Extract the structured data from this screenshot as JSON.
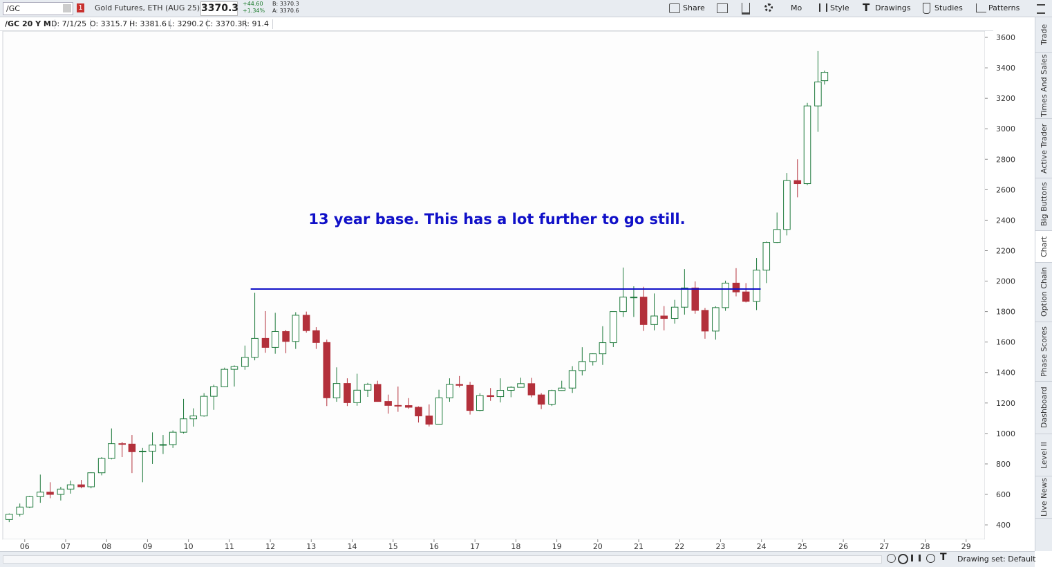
{
  "toolbar": {
    "symbol": "/GC",
    "link_badge": "1",
    "description": "Gold Futures, ETH (AUG 25)",
    "last": "3370.3",
    "change": "+44.60",
    "change_pct": "+1.34%",
    "bid": "B: 3370.3",
    "ask": "A: 3370.6",
    "buttons": [
      "Share",
      "Mo",
      "Style",
      "Drawings",
      "Studies",
      "Patterns"
    ]
  },
  "infobar": [
    "/GC 20 Y M",
    "D: 7/1/25",
    "O: 3315.7",
    "H: 3381.6",
    "L: 3290.2",
    "C: 3370.3",
    "R: 91.4"
  ],
  "sidebar_tabs": [
    "Trade",
    "Times And Sales",
    "Active Trader",
    "Big Buttons",
    "Chart",
    "Option Chain",
    "Phase Scores",
    "Dashboard",
    "Level II",
    "Live News"
  ],
  "footer": {
    "drawing_set": "Drawing set: Default"
  },
  "chart_data": {
    "type": "candlestick",
    "annotation_text": "13 year base. This has a lot further to go still.",
    "annotation_line": {
      "level": 1948,
      "x_start": 2011.52,
      "x_end": 2023.98,
      "color": "#1010c8"
    },
    "up_color": "#1e7a3c",
    "down_color": "#b3303b",
    "xlim": [
      2005.48,
      2029.46
    ],
    "ylim": [
      305,
      3641
    ],
    "yticks": [
      400,
      600,
      800,
      1000,
      1200,
      1400,
      1600,
      1800,
      2000,
      2200,
      2400,
      2600,
      2800,
      3000,
      3200,
      3400,
      3600
    ],
    "xticks": [
      {
        "value": 2006,
        "label": "06"
      },
      {
        "value": 2007,
        "label": "07"
      },
      {
        "value": 2008,
        "label": "08"
      },
      {
        "value": 2009,
        "label": "09"
      },
      {
        "value": 2010,
        "label": "10"
      },
      {
        "value": 2011,
        "label": "11"
      },
      {
        "value": 2012,
        "label": "12"
      },
      {
        "value": 2013,
        "label": "13"
      },
      {
        "value": 2014,
        "label": "14"
      },
      {
        "value": 2015,
        "label": "15"
      },
      {
        "value": 2016,
        "label": "16"
      },
      {
        "value": 2017,
        "label": "17"
      },
      {
        "value": 2018,
        "label": "18"
      },
      {
        "value": 2019,
        "label": "19"
      },
      {
        "value": 2020,
        "label": "20"
      },
      {
        "value": 2021,
        "label": "21"
      },
      {
        "value": 2022,
        "label": "22"
      },
      {
        "value": 2023,
        "label": "23"
      },
      {
        "value": 2024,
        "label": "24"
      },
      {
        "value": 2025,
        "label": "25"
      },
      {
        "value": 2026,
        "label": "26"
      },
      {
        "value": 2027,
        "label": "27"
      },
      {
        "value": 2028,
        "label": "28"
      },
      {
        "value": 2029,
        "label": "29"
      }
    ],
    "x": [
      2005.62,
      2005.88,
      2006.12,
      2006.38,
      2006.62,
      2006.88,
      2007.12,
      2007.38,
      2007.62,
      2007.88,
      2008.12,
      2008.38,
      2008.62,
      2008.88,
      2009.12,
      2009.38,
      2009.62,
      2009.88,
      2010.12,
      2010.38,
      2010.62,
      2010.88,
      2011.12,
      2011.38,
      2011.62,
      2011.88,
      2012.12,
      2012.38,
      2012.62,
      2012.88,
      2013.12,
      2013.38,
      2013.62,
      2013.88,
      2014.12,
      2014.38,
      2014.62,
      2014.88,
      2015.12,
      2015.38,
      2015.62,
      2015.88,
      2016.12,
      2016.38,
      2016.62,
      2016.88,
      2017.12,
      2017.38,
      2017.62,
      2017.88,
      2018.12,
      2018.38,
      2018.62,
      2018.88,
      2019.12,
      2019.38,
      2019.62,
      2019.88,
      2020.12,
      2020.38,
      2020.62,
      2020.88,
      2021.12,
      2021.38,
      2021.62,
      2021.88,
      2022.12,
      2022.38,
      2022.62,
      2022.88,
      2023.12,
      2023.38,
      2023.62,
      2023.88,
      2024.12,
      2024.38,
      2024.62,
      2024.88,
      2025.12,
      2025.38,
      2025.54
    ],
    "open": [
      435,
      470,
      517,
      585,
      615,
      600,
      635,
      663,
      650,
      742,
      836,
      933,
      930,
      880,
      884,
      924,
      927,
      1008,
      1096,
      1115,
      1244,
      1307,
      1421,
      1439,
      1500,
      1624,
      1565,
      1669,
      1604,
      1776,
      1675,
      1597,
      1234,
      1328,
      1202,
      1284,
      1322,
      1210,
      1184,
      1183,
      1172,
      1115,
      1061,
      1234,
      1322,
      1316,
      1151,
      1249,
      1242,
      1283,
      1303,
      1327,
      1253,
      1192,
      1282,
      1298,
      1413,
      1472,
      1523,
      1596,
      1800,
      1895,
      1895,
      1715,
      1771,
      1755,
      1829,
      1955,
      1808,
      1672,
      1826,
      1987,
      1929,
      1867,
      2072,
      2254,
      2339,
      2660,
      2640,
      3150,
      3315.7
    ],
    "high": [
      475,
      540,
      590,
      730,
      680,
      650,
      690,
      695,
      745,
      845,
      1033,
      945,
      990,
      905,
      1007,
      990,
      1020,
      1227,
      1165,
      1265,
      1320,
      1432,
      1447,
      1577,
      1923,
      1803,
      1792,
      1680,
      1796,
      1800,
      1698,
      1616,
      1434,
      1362,
      1392,
      1332,
      1346,
      1255,
      1308,
      1232,
      1178,
      1191,
      1287,
      1362,
      1377,
      1339,
      1264,
      1298,
      1362,
      1310,
      1366,
      1365,
      1265,
      1287,
      1346,
      1442,
      1566,
      1526,
      1704,
      1800,
      2089,
      1966,
      1963,
      1919,
      1836,
      1877,
      2079,
      1998,
      1824,
      1835,
      2003,
      2085,
      1987,
      2152,
      2260,
      2450,
      2710,
      2800,
      3170,
      3510,
      3381.6
    ],
    "low": [
      418,
      455,
      510,
      545,
      575,
      560,
      605,
      640,
      640,
      725,
      830,
      845,
      740,
      680,
      800,
      865,
      905,
      1000,
      1045,
      1110,
      1155,
      1305,
      1308,
      1418,
      1480,
      1530,
      1523,
      1527,
      1555,
      1662,
      1555,
      1180,
      1208,
      1180,
      1182,
      1240,
      1208,
      1130,
      1142,
      1162,
      1072,
      1046,
      1060,
      1208,
      1302,
      1124,
      1146,
      1214,
      1204,
      1238,
      1302,
      1237,
      1160,
      1180,
      1280,
      1266,
      1381,
      1446,
      1450,
      1567,
      1765,
      1765,
      1673,
      1677,
      1677,
      1721,
      1780,
      1786,
      1622,
      1616,
      1805,
      1900,
      1860,
      1810,
      1987,
      2250,
      2300,
      2550,
      2630,
      2980,
      3290.2
    ],
    "close": [
      470,
      517,
      585,
      615,
      600,
      635,
      663,
      650,
      742,
      836,
      933,
      930,
      880,
      884,
      924,
      927,
      1008,
      1096,
      1115,
      1244,
      1307,
      1421,
      1439,
      1500,
      1624,
      1565,
      1669,
      1604,
      1776,
      1675,
      1597,
      1234,
      1328,
      1202,
      1284,
      1322,
      1210,
      1184,
      1183,
      1172,
      1115,
      1061,
      1234,
      1322,
      1316,
      1151,
      1249,
      1242,
      1283,
      1303,
      1327,
      1253,
      1192,
      1282,
      1298,
      1413,
      1472,
      1523,
      1596,
      1800,
      1895,
      1895,
      1715,
      1771,
      1755,
      1829,
      1955,
      1808,
      1672,
      1826,
      1987,
      1929,
      1867,
      2072,
      2254,
      2339,
      2660,
      2640,
      3150,
      3307,
      3370.3
    ]
  }
}
